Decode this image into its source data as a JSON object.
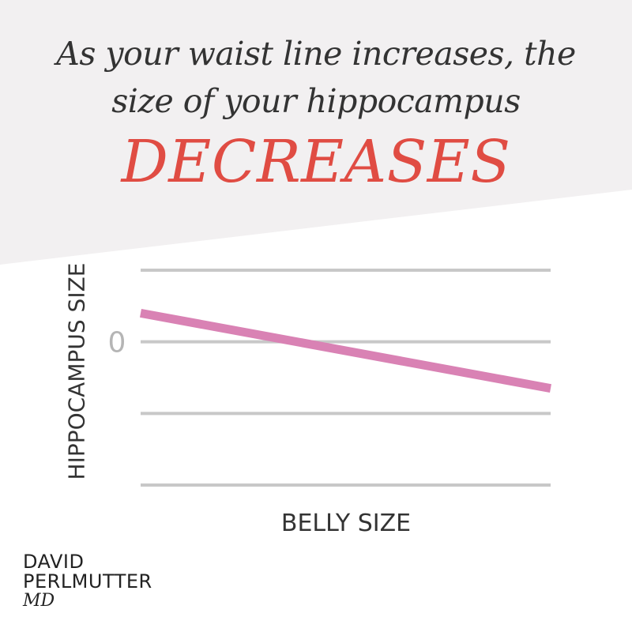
{
  "headline": {
    "line1": "As your waist line increases, the",
    "line2": "size of your hippocampus",
    "emphasis": "DECREASES"
  },
  "brand": {
    "line1": "DAVID",
    "line2": "PERLMUTTER",
    "line3": "MD"
  },
  "colors": {
    "emphasis": "#e04c43",
    "trend_line": "#d982b4",
    "gridline": "#c8c8c8",
    "background_band": "#f2f0f1"
  },
  "chart_data": {
    "type": "line",
    "title": "",
    "xlabel": "BELLY SIZE",
    "ylabel": "HIPPOCAMPUS SIZE",
    "ytick_labels": [
      {
        "value": 0,
        "label": "0"
      }
    ],
    "gridlines_y": [
      1,
      0,
      -1,
      -2
    ],
    "ylim": [
      -2,
      1
    ],
    "xlim": [
      0,
      1
    ],
    "grid": true,
    "legend": "none",
    "series": [
      {
        "x": [
          0,
          1
        ],
        "y": [
          0.4,
          -0.65
        ]
      }
    ]
  }
}
